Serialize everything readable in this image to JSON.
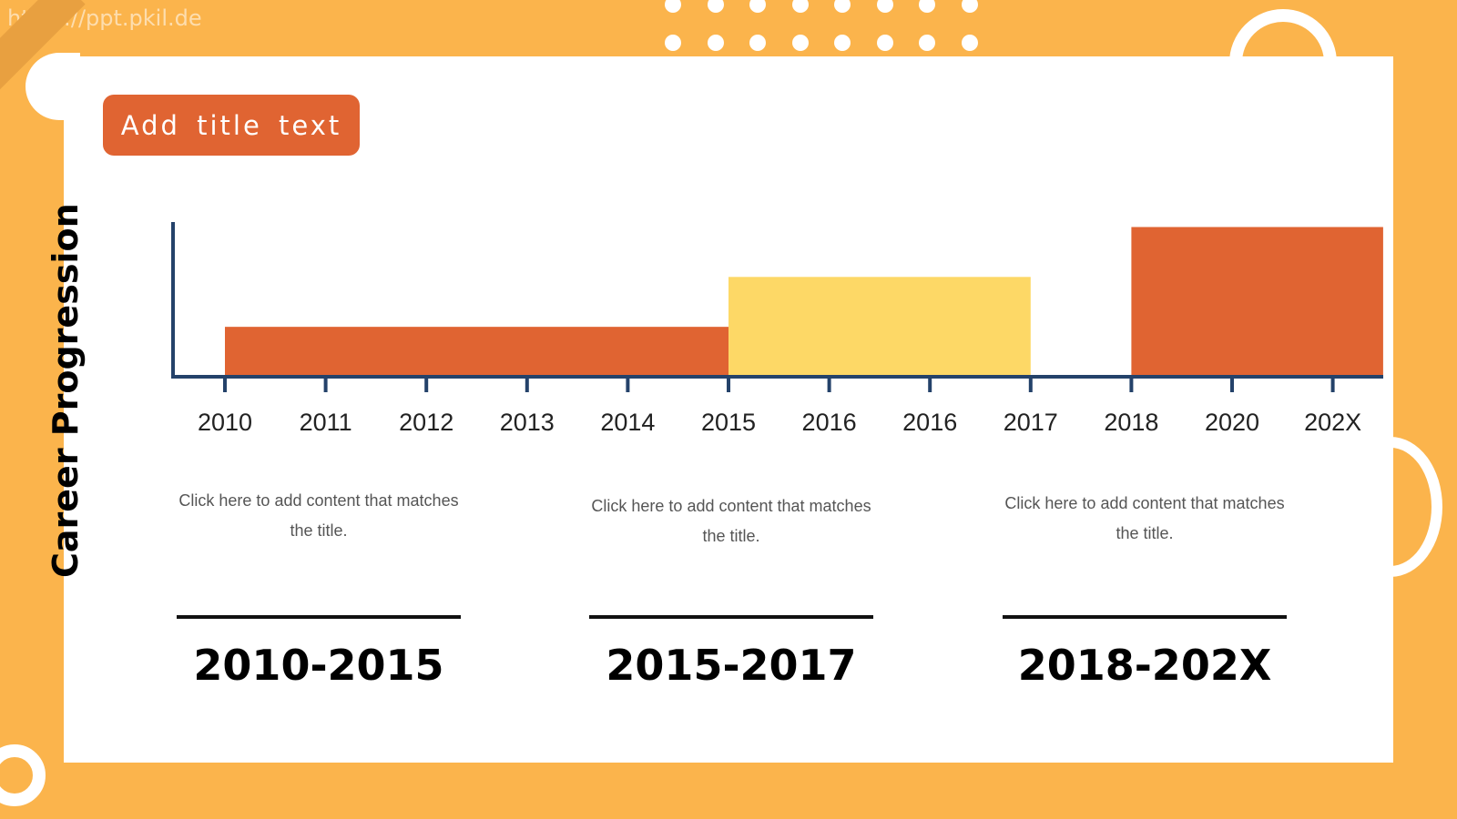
{
  "watermark": "https://ppt.pkil.de",
  "title": "Add title text",
  "vertical_label": "Career Progression",
  "colors": {
    "orange": "#E06432",
    "yellow": "#FDD866",
    "axis": "#24426A",
    "background": "#FBB44C"
  },
  "chart_data": {
    "type": "bar",
    "categories": [
      "2010",
      "2011",
      "2012",
      "2013",
      "2014",
      "2015",
      "2016",
      "2016",
      "2017",
      "2018",
      "2020",
      "202X"
    ],
    "bars": [
      {
        "start": 0,
        "end": 5,
        "value": 1,
        "color": "#E06432"
      },
      {
        "start": 5,
        "end": 8,
        "value": 2,
        "color": "#FDD866"
      },
      {
        "start": 9,
        "end": 11.5,
        "value": 3,
        "color": "#E06432"
      }
    ],
    "ylim": [
      0,
      3.1
    ]
  },
  "phases": [
    {
      "description": "Click here to add content that matches the title.",
      "range": "2010-2015"
    },
    {
      "description": "Click here to add content that matches the title.",
      "range": "2015-2017"
    },
    {
      "description": "Click here to add content that matches the title.",
      "range": "2018-202X"
    }
  ]
}
